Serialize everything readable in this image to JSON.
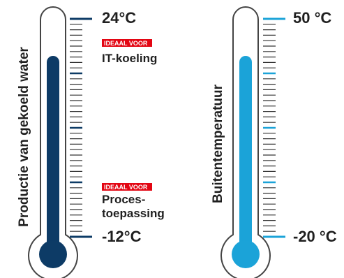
{
  "colors": {
    "water_dark": "#0d3b66",
    "air_light": "#1ba3d8",
    "badge_red": "#e30613",
    "outline": "#444444",
    "minor_tick": "#333333",
    "text": "#1f1f1f"
  },
  "left": {
    "vertical_label": "Productie van gekoeld water",
    "top_value": "24°C",
    "bottom_value": "-12°C",
    "badge_top": "IDEAAL VOOR",
    "badge_top_text": "IT-koeling",
    "badge_bottom": "IDEAAL VOOR",
    "badge_bottom_text_line1": "Proces-",
    "badge_bottom_text_line2": "toepassing"
  },
  "right": {
    "vertical_label": "Buitentemperatuur",
    "top_value": "50 °C",
    "bottom_value": "-20 °C"
  },
  "icons": {
    "left_thermometer": "thermometer-icon",
    "right_thermometer": "thermometer-icon"
  }
}
